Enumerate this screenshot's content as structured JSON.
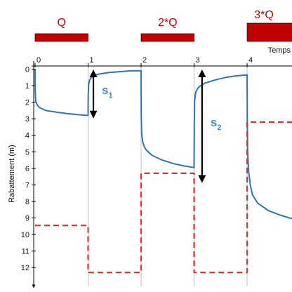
{
  "chart_data": {
    "type": "line",
    "title": "",
    "xlabel": "Temps",
    "ylabel": "Rabattement (m)",
    "x_ticks": [
      "0",
      "1",
      "2",
      "3",
      "4"
    ],
    "y_ticks": [
      "0",
      "1",
      "2",
      "3",
      "4",
      "5",
      "6",
      "7",
      "8",
      "9",
      "10",
      "11",
      "12"
    ],
    "xlim": [
      0,
      4.9
    ],
    "ylim": [
      -0.15,
      12.8
    ],
    "y_inverted": true,
    "grid": "vertical",
    "pumping_rates": [
      {
        "label": "Q",
        "start": 0,
        "end": 1
      },
      {
        "label": "2*Q",
        "start": 2,
        "end": 3
      },
      {
        "label": "3*Q",
        "start": 4,
        "end": 4.9
      }
    ],
    "series": [
      {
        "color": "#2e75b6",
        "style": "solid",
        "x": [
          0,
          0.003,
          0.01,
          0.03,
          0.06,
          0.1,
          0.2,
          0.4,
          0.6,
          0.8,
          1,
          1.003,
          1.01,
          1.03,
          1.06,
          1.1,
          1.2,
          1.4,
          1.6,
          1.8,
          2,
          2.003,
          2.01,
          2.03,
          2.06,
          2.1,
          2.2,
          2.4,
          2.6,
          2.8,
          3,
          3.003,
          3.01,
          3.03,
          3.06,
          3.1,
          3.2,
          3.4,
          3.6,
          3.8,
          4,
          4.003,
          4.01,
          4.03,
          4.06,
          4.1,
          4.2,
          4.4,
          4.6,
          4.8,
          4.9
        ],
        "y": [
          0,
          1.3,
          1.9,
          2.1,
          2.25,
          2.35,
          2.5,
          2.6,
          2.68,
          2.75,
          2.8,
          1.5,
          0.9,
          0.65,
          0.5,
          0.4,
          0.3,
          0.2,
          0.15,
          0.1,
          0.1,
          2.8,
          3.9,
          4.4,
          4.7,
          4.9,
          5.2,
          5.5,
          5.7,
          5.85,
          5.95,
          3.3,
          1.9,
          1.4,
          1.2,
          1.05,
          0.85,
          0.65,
          0.5,
          0.4,
          0.35,
          3.1,
          5.0,
          6.2,
          7.0,
          7.6,
          8.1,
          8.55,
          8.8,
          9.0,
          9.05
        ]
      },
      {
        "color": "#e03030",
        "style": "dashed",
        "x": [
          0,
          1,
          1,
          2,
          2,
          3,
          3,
          4,
          4,
          4.9
        ],
        "y": [
          9.45,
          9.45,
          12.3,
          12.3,
          6.3,
          6.3,
          12.3,
          12.3,
          3.2,
          3.2
        ]
      }
    ],
    "annotations": [
      {
        "symbol": "s",
        "subscript": "1",
        "x_at": 1.1,
        "y_from": 0.0,
        "y_to": 3.0
      },
      {
        "symbol": "s",
        "subscript": "2",
        "x_at": 3.15,
        "y_from": 0.0,
        "y_to": 6.9
      }
    ]
  }
}
